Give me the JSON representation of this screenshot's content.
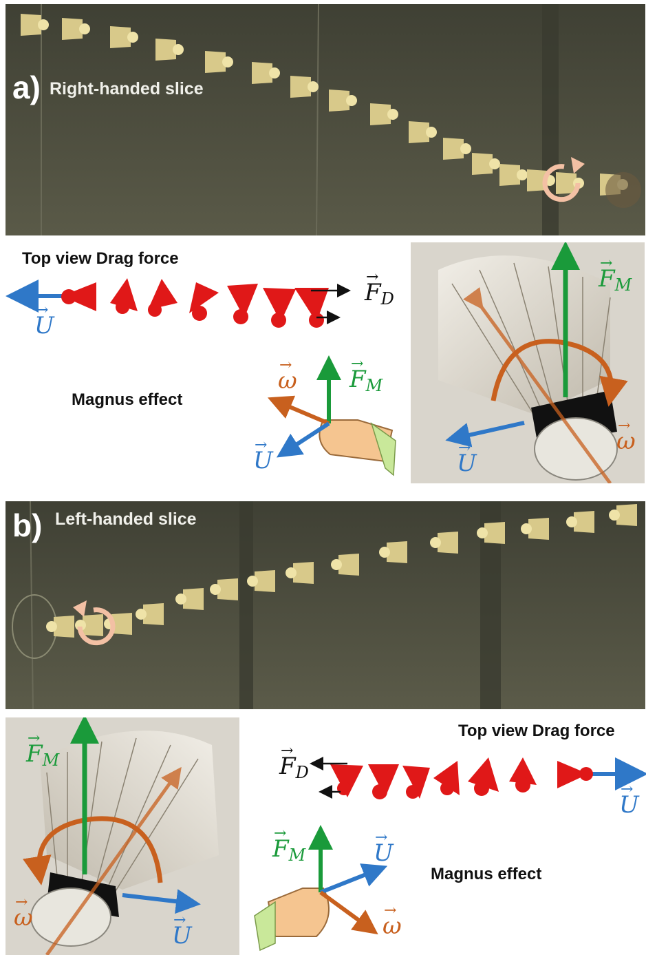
{
  "panel_a": {
    "letter": "a)",
    "title": "Right-handed slice",
    "top_view_label": "Top view Drag force",
    "magnus_label": "Magnus effect",
    "vectors": {
      "fd": {
        "symbol": "F",
        "sub": "D",
        "color": "#111111"
      },
      "u_top": {
        "symbol": "U",
        "color": "#2f78c8"
      },
      "omega_hand": {
        "symbol": "ω",
        "color": "#c8601e"
      },
      "fm_hand": {
        "symbol": "F",
        "sub": "M",
        "color": "#1a9a3a"
      },
      "u_hand": {
        "symbol": "U",
        "color": "#2f78c8"
      },
      "fm_photo": {
        "symbol": "F",
        "sub": "M",
        "color": "#1a9a3a"
      },
      "u_photo": {
        "symbol": "U",
        "color": "#2f78c8"
      },
      "omega_photo": {
        "symbol": "ω",
        "color": "#c8601e"
      }
    }
  },
  "panel_b": {
    "letter": "b)",
    "title": "Left-handed slice",
    "top_view_label": "Top view Drag force",
    "magnus_label": "Magnus effect",
    "vectors": {
      "fd": {
        "symbol": "F",
        "sub": "D",
        "color": "#111111"
      },
      "u_top": {
        "symbol": "U",
        "color": "#2f78c8"
      },
      "fm_hand": {
        "symbol": "F",
        "sub": "M",
        "color": "#1a9a3a"
      },
      "u_hand": {
        "symbol": "U",
        "color": "#2f78c8"
      },
      "omega_hand": {
        "symbol": "ω",
        "color": "#c8601e"
      },
      "fm_photo": {
        "symbol": "F",
        "sub": "M",
        "color": "#1a9a3a"
      },
      "omega_photo": {
        "symbol": "ω",
        "color": "#c8601e"
      },
      "u_photo": {
        "symbol": "U",
        "color": "#2f78c8"
      }
    }
  },
  "colors": {
    "green": "#1a9a3a",
    "blue": "#2f78c8",
    "orange": "#c8601e",
    "red": "#e01818",
    "spin_arrow": "#f3c0a4",
    "backdrop": "#4a4b3a"
  },
  "icons": [
    "shuttlecock-icon",
    "spin-arrow-icon",
    "hand-icon",
    "cone-icon"
  ]
}
